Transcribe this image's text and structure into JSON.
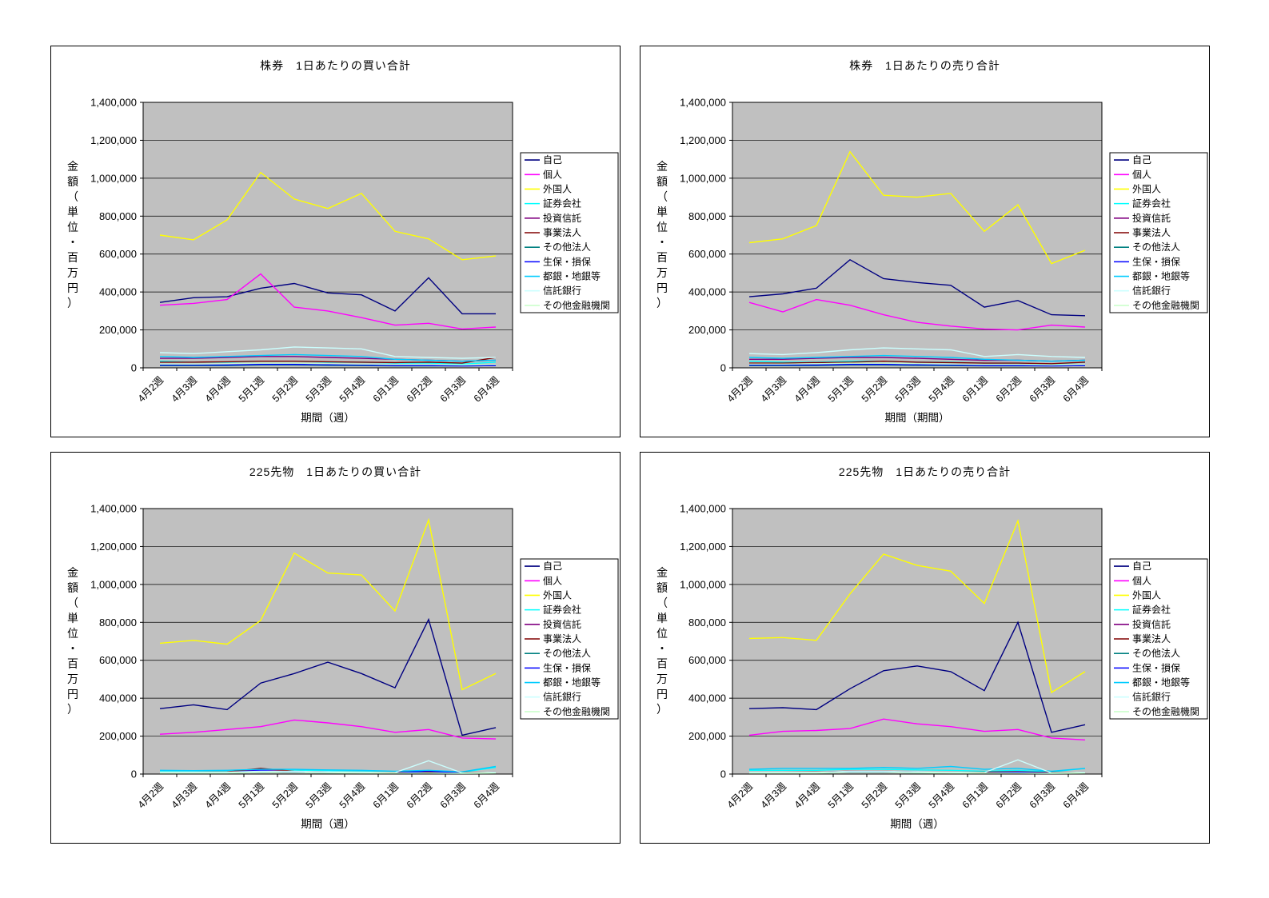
{
  "colors": {
    "plot_background": "#c0c0c0",
    "grid": "#000000",
    "panel_border": "#000000",
    "legend_background": "#ffffff"
  },
  "series_names": [
    "自己",
    "個人",
    "外国人",
    "証券会社",
    "投資信託",
    "事業法人",
    "その他法人",
    "生保・損保",
    "都銀・地銀等",
    "信託銀行",
    "その他金融機関"
  ],
  "series_colors": [
    "#000080",
    "#ff00ff",
    "#ffff00",
    "#00ffff",
    "#800080",
    "#800000",
    "#008080",
    "#0000ff",
    "#00ccff",
    "#ccffff",
    "#ccffcc"
  ],
  "chart_data": [
    {
      "type": "line",
      "title": "株券　1日あたりの買い合計",
      "xlabel": "期間（週）",
      "ylabel": "金額（単位・百万円）",
      "ylim": [
        0,
        1400000
      ],
      "ystep": 200000,
      "legend_position": "right",
      "grid": true,
      "categories": [
        "4月2週",
        "4月3週",
        "4月4週",
        "5月1週",
        "5月2週",
        "5月3週",
        "5月4週",
        "6月1週",
        "6月2週",
        "6月3週",
        "6月4週"
      ],
      "series": [
        {
          "name": "自己",
          "color": "#000080",
          "values": [
            345000,
            370000,
            375000,
            420000,
            445000,
            395000,
            385000,
            300000,
            475000,
            285000,
            285000
          ]
        },
        {
          "name": "個人",
          "color": "#ff00ff",
          "values": [
            330000,
            340000,
            360000,
            495000,
            320000,
            300000,
            265000,
            225000,
            235000,
            205000,
            215000
          ]
        },
        {
          "name": "外国人",
          "color": "#ffff00",
          "values": [
            700000,
            675000,
            780000,
            1030000,
            890000,
            840000,
            920000,
            720000,
            680000,
            570000,
            590000
          ]
        },
        {
          "name": "証券会社",
          "color": "#00ffff",
          "values": [
            35000,
            30000,
            30000,
            35000,
            35000,
            30000,
            30000,
            25000,
            25000,
            20000,
            30000
          ]
        },
        {
          "name": "投資信託",
          "color": "#800080",
          "values": [
            50000,
            50000,
            55000,
            60000,
            60000,
            55000,
            50000,
            45000,
            40000,
            35000,
            40000
          ]
        },
        {
          "name": "事業法人",
          "color": "#800000",
          "values": [
            30000,
            30000,
            32000,
            35000,
            35000,
            32000,
            30000,
            28000,
            30000,
            25000,
            55000
          ]
        },
        {
          "name": "その他法人",
          "color": "#008080",
          "values": [
            12000,
            12000,
            12000,
            15000,
            15000,
            13000,
            12000,
            10000,
            10000,
            10000,
            12000
          ]
        },
        {
          "name": "生保・損保",
          "color": "#0000ff",
          "values": [
            15000,
            15000,
            15000,
            18000,
            18000,
            16000,
            15000,
            12000,
            12000,
            10000,
            12000
          ]
        },
        {
          "name": "都銀・地銀等",
          "color": "#00ccff",
          "values": [
            60000,
            55000,
            60000,
            65000,
            70000,
            65000,
            60000,
            45000,
            40000,
            35000,
            40000
          ]
        },
        {
          "name": "信託銀行",
          "color": "#ccffff",
          "values": [
            80000,
            75000,
            85000,
            95000,
            110000,
            105000,
            100000,
            60000,
            55000,
            50000,
            55000
          ]
        },
        {
          "name": "その他金融機関",
          "color": "#ccffcc",
          "values": [
            20000,
            20000,
            22000,
            25000,
            25000,
            22000,
            20000,
            18000,
            18000,
            15000,
            18000
          ]
        }
      ]
    },
    {
      "type": "line",
      "title": "株券　1日あたりの売り合計",
      "xlabel": "期間（期間）",
      "ylabel": "金額（単位・百万円）",
      "ylim": [
        0,
        1400000
      ],
      "ystep": 200000,
      "legend_position": "right",
      "grid": true,
      "categories": [
        "4月2週",
        "4月3週",
        "4月4週",
        "5月1週",
        "5月2週",
        "5月3週",
        "5月4週",
        "6月1週",
        "6月2週",
        "6月3週",
        "6月4週"
      ],
      "series": [
        {
          "name": "自己",
          "color": "#000080",
          "values": [
            375000,
            390000,
            420000,
            570000,
            470000,
            450000,
            435000,
            320000,
            355000,
            280000,
            275000
          ]
        },
        {
          "name": "個人",
          "color": "#ff00ff",
          "values": [
            345000,
            295000,
            360000,
            330000,
            280000,
            240000,
            220000,
            205000,
            200000,
            225000,
            215000
          ]
        },
        {
          "name": "外国人",
          "color": "#ffff00",
          "values": [
            660000,
            680000,
            750000,
            1140000,
            910000,
            900000,
            920000,
            720000,
            860000,
            550000,
            620000
          ]
        },
        {
          "name": "証券会社",
          "color": "#00ffff",
          "values": [
            35000,
            30000,
            30000,
            35000,
            35000,
            30000,
            30000,
            25000,
            25000,
            20000,
            30000
          ]
        },
        {
          "name": "投資信託",
          "color": "#800080",
          "values": [
            45000,
            45000,
            50000,
            55000,
            55000,
            50000,
            45000,
            40000,
            40000,
            35000,
            40000
          ]
        },
        {
          "name": "事業法人",
          "color": "#800000",
          "values": [
            25000,
            25000,
            28000,
            30000,
            35000,
            30000,
            28000,
            25000,
            25000,
            22000,
            30000
          ]
        },
        {
          "name": "その他法人",
          "color": "#008080",
          "values": [
            12000,
            12000,
            12000,
            15000,
            15000,
            13000,
            12000,
            10000,
            10000,
            10000,
            12000
          ]
        },
        {
          "name": "生保・損保",
          "color": "#0000ff",
          "values": [
            15000,
            15000,
            15000,
            18000,
            18000,
            16000,
            15000,
            12000,
            12000,
            10000,
            12000
          ]
        },
        {
          "name": "都銀・地銀等",
          "color": "#00ccff",
          "values": [
            55000,
            50000,
            55000,
            60000,
            65000,
            60000,
            55000,
            45000,
            40000,
            35000,
            40000
          ]
        },
        {
          "name": "信託銀行",
          "color": "#ccffff",
          "values": [
            75000,
            70000,
            80000,
            95000,
            105000,
            100000,
            95000,
            60000,
            70000,
            60000,
            55000
          ]
        },
        {
          "name": "その他金融機関",
          "color": "#ccffcc",
          "values": [
            20000,
            20000,
            22000,
            25000,
            25000,
            22000,
            20000,
            18000,
            18000,
            15000,
            18000
          ]
        }
      ]
    },
    {
      "type": "line",
      "title": "225先物　1日あたりの買い合計",
      "xlabel": "期間（週）",
      "ylabel": "金額（単位・百万円）",
      "ylim": [
        0,
        1400000
      ],
      "ystep": 200000,
      "legend_position": "right",
      "grid": true,
      "categories": [
        "4月2週",
        "4月3週",
        "4月4週",
        "5月1週",
        "5月2週",
        "5月3週",
        "5月4週",
        "6月1週",
        "6月2週",
        "6月3週",
        "6月4週"
      ],
      "series": [
        {
          "name": "自己",
          "color": "#000080",
          "values": [
            345000,
            365000,
            340000,
            480000,
            530000,
            590000,
            530000,
            455000,
            815000,
            205000,
            245000
          ]
        },
        {
          "name": "個人",
          "color": "#ff00ff",
          "values": [
            210000,
            220000,
            235000,
            250000,
            285000,
            270000,
            250000,
            220000,
            235000,
            190000,
            185000
          ]
        },
        {
          "name": "外国人",
          "color": "#ffff00",
          "values": [
            690000,
            705000,
            685000,
            810000,
            1165000,
            1060000,
            1050000,
            860000,
            1340000,
            445000,
            530000
          ]
        },
        {
          "name": "証券会社",
          "color": "#00ffff",
          "values": [
            15000,
            15000,
            15000,
            20000,
            20000,
            18000,
            15000,
            12000,
            15000,
            10000,
            35000
          ]
        },
        {
          "name": "投資信託",
          "color": "#800080",
          "values": [
            8000,
            8000,
            10000,
            25000,
            12000,
            10000,
            10000,
            8000,
            10000,
            8000,
            10000
          ]
        },
        {
          "name": "事業法人",
          "color": "#800000",
          "values": [
            10000,
            10000,
            12000,
            30000,
            15000,
            12000,
            10000,
            10000,
            12000,
            8000,
            10000
          ]
        },
        {
          "name": "その他法人",
          "color": "#008080",
          "values": [
            5000,
            5000,
            5000,
            8000,
            8000,
            6000,
            5000,
            5000,
            5000,
            4000,
            5000
          ]
        },
        {
          "name": "生保・損保",
          "color": "#0000ff",
          "values": [
            8000,
            8000,
            8000,
            20000,
            10000,
            8000,
            8000,
            6000,
            15000,
            5000,
            8000
          ]
        },
        {
          "name": "都銀・地銀等",
          "color": "#00ccff",
          "values": [
            20000,
            18000,
            20000,
            25000,
            25000,
            22000,
            20000,
            15000,
            20000,
            12000,
            40000
          ]
        },
        {
          "name": "信託銀行",
          "color": "#ccffff",
          "values": [
            10000,
            10000,
            10000,
            15000,
            15000,
            12000,
            10000,
            8000,
            70000,
            6000,
            10000
          ]
        },
        {
          "name": "その他金融機関",
          "color": "#ccffcc",
          "values": [
            5000,
            5000,
            5000,
            8000,
            8000,
            6000,
            5000,
            5000,
            5000,
            4000,
            5000
          ]
        }
      ]
    },
    {
      "type": "line",
      "title": "225先物　1日あたりの売り合計",
      "xlabel": "期間（週）",
      "ylabel": "金額（単位・百万円）",
      "ylim": [
        0,
        1400000
      ],
      "ystep": 200000,
      "legend_position": "right",
      "grid": true,
      "categories": [
        "4月2週",
        "4月3週",
        "4月4週",
        "5月1週",
        "5月2週",
        "5月3週",
        "5月4週",
        "6月1週",
        "6月2週",
        "6月3週",
        "6月4週"
      ],
      "series": [
        {
          "name": "自己",
          "color": "#000080",
          "values": [
            345000,
            350000,
            340000,
            450000,
            545000,
            570000,
            540000,
            440000,
            800000,
            220000,
            260000
          ]
        },
        {
          "name": "個人",
          "color": "#ff00ff",
          "values": [
            205000,
            225000,
            230000,
            240000,
            290000,
            265000,
            250000,
            225000,
            235000,
            190000,
            180000
          ]
        },
        {
          "name": "外国人",
          "color": "#ffff00",
          "values": [
            715000,
            720000,
            705000,
            950000,
            1160000,
            1100000,
            1070000,
            900000,
            1335000,
            430000,
            540000
          ]
        },
        {
          "name": "証券会社",
          "color": "#00ffff",
          "values": [
            20000,
            20000,
            20000,
            25000,
            25000,
            22000,
            20000,
            15000,
            20000,
            12000,
            30000
          ]
        },
        {
          "name": "投資信託",
          "color": "#800080",
          "values": [
            8000,
            8000,
            10000,
            15000,
            12000,
            10000,
            10000,
            8000,
            10000,
            8000,
            10000
          ]
        },
        {
          "name": "事業法人",
          "color": "#800000",
          "values": [
            10000,
            10000,
            12000,
            15000,
            15000,
            12000,
            10000,
            10000,
            12000,
            8000,
            10000
          ]
        },
        {
          "name": "その他法人",
          "color": "#008080",
          "values": [
            5000,
            5000,
            5000,
            8000,
            8000,
            6000,
            5000,
            5000,
            5000,
            4000,
            5000
          ]
        },
        {
          "name": "生保・損保",
          "color": "#0000ff",
          "values": [
            8000,
            8000,
            8000,
            12000,
            10000,
            8000,
            8000,
            6000,
            10000,
            5000,
            8000
          ]
        },
        {
          "name": "都銀・地銀等",
          "color": "#00ccff",
          "values": [
            25000,
            30000,
            30000,
            30000,
            35000,
            30000,
            40000,
            25000,
            30000,
            15000,
            30000
          ]
        },
        {
          "name": "信託銀行",
          "color": "#ccffff",
          "values": [
            10000,
            10000,
            10000,
            15000,
            15000,
            12000,
            10000,
            8000,
            75000,
            6000,
            10000
          ]
        },
        {
          "name": "その他金融機関",
          "color": "#ccffcc",
          "values": [
            5000,
            5000,
            5000,
            8000,
            8000,
            6000,
            5000,
            5000,
            5000,
            4000,
            5000
          ]
        }
      ]
    }
  ]
}
